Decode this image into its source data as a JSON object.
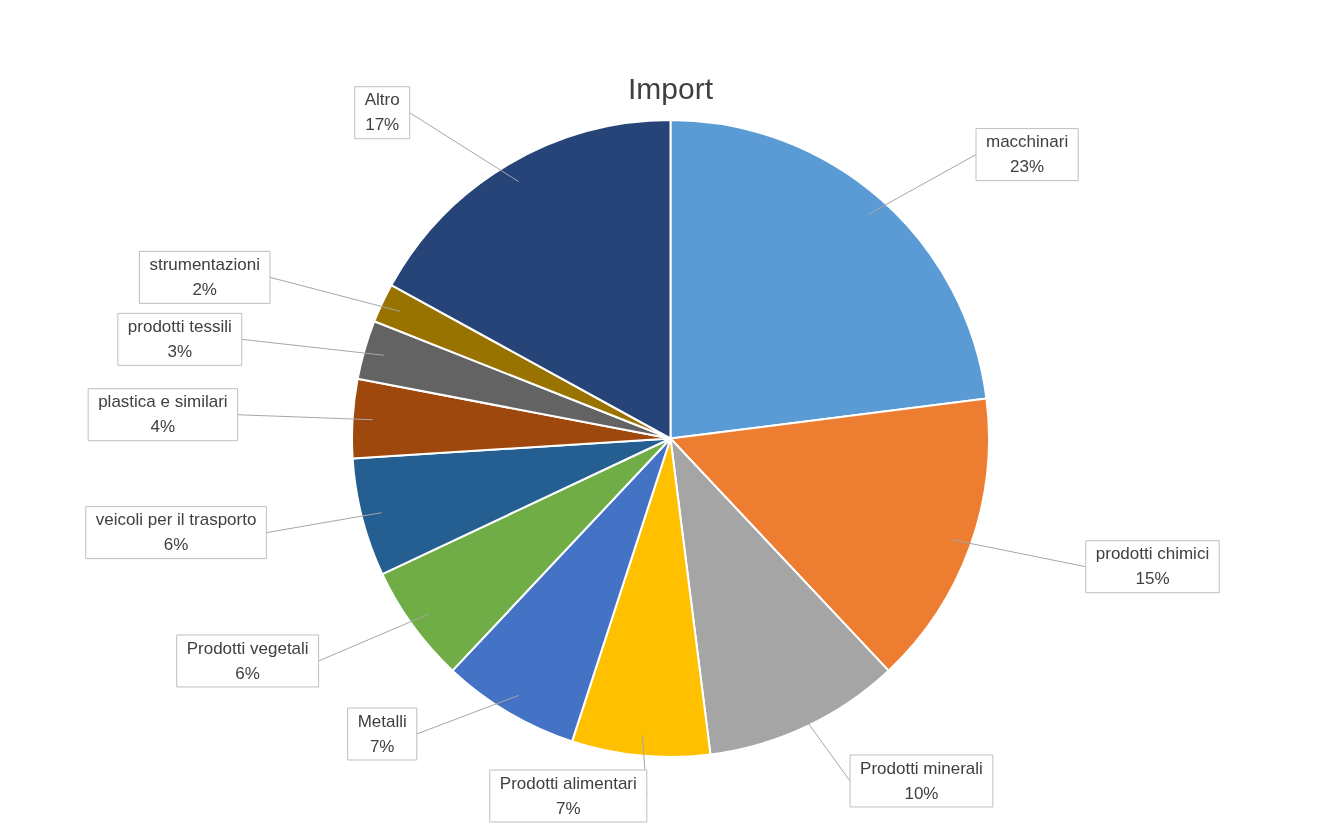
{
  "chart_data": {
    "type": "pie",
    "title": "Import",
    "categories": [
      "macchinari",
      "prodotti chimici",
      "Prodotti minerali",
      "Prodotti alimentari",
      "Metalli",
      "Prodotti vegetali",
      "veicoli per il trasporto",
      "plastica e similari",
      "prodotti tessili",
      "strumentazioni",
      "Altro"
    ],
    "values": [
      23,
      15,
      10,
      7,
      7,
      6,
      6,
      4,
      3,
      2,
      17
    ],
    "value_labels": [
      "23%",
      "15%",
      "10%",
      "7%",
      "7%",
      "6%",
      "6%",
      "4%",
      "3%",
      "2%",
      "17%"
    ],
    "colors": [
      "#5b9bd5",
      "#ed7d31",
      "#a5a5a5",
      "#ffc000",
      "#4472c4",
      "#70ad47",
      "#255e91",
      "#9e480e",
      "#636363",
      "#997300",
      "#264478"
    ]
  }
}
